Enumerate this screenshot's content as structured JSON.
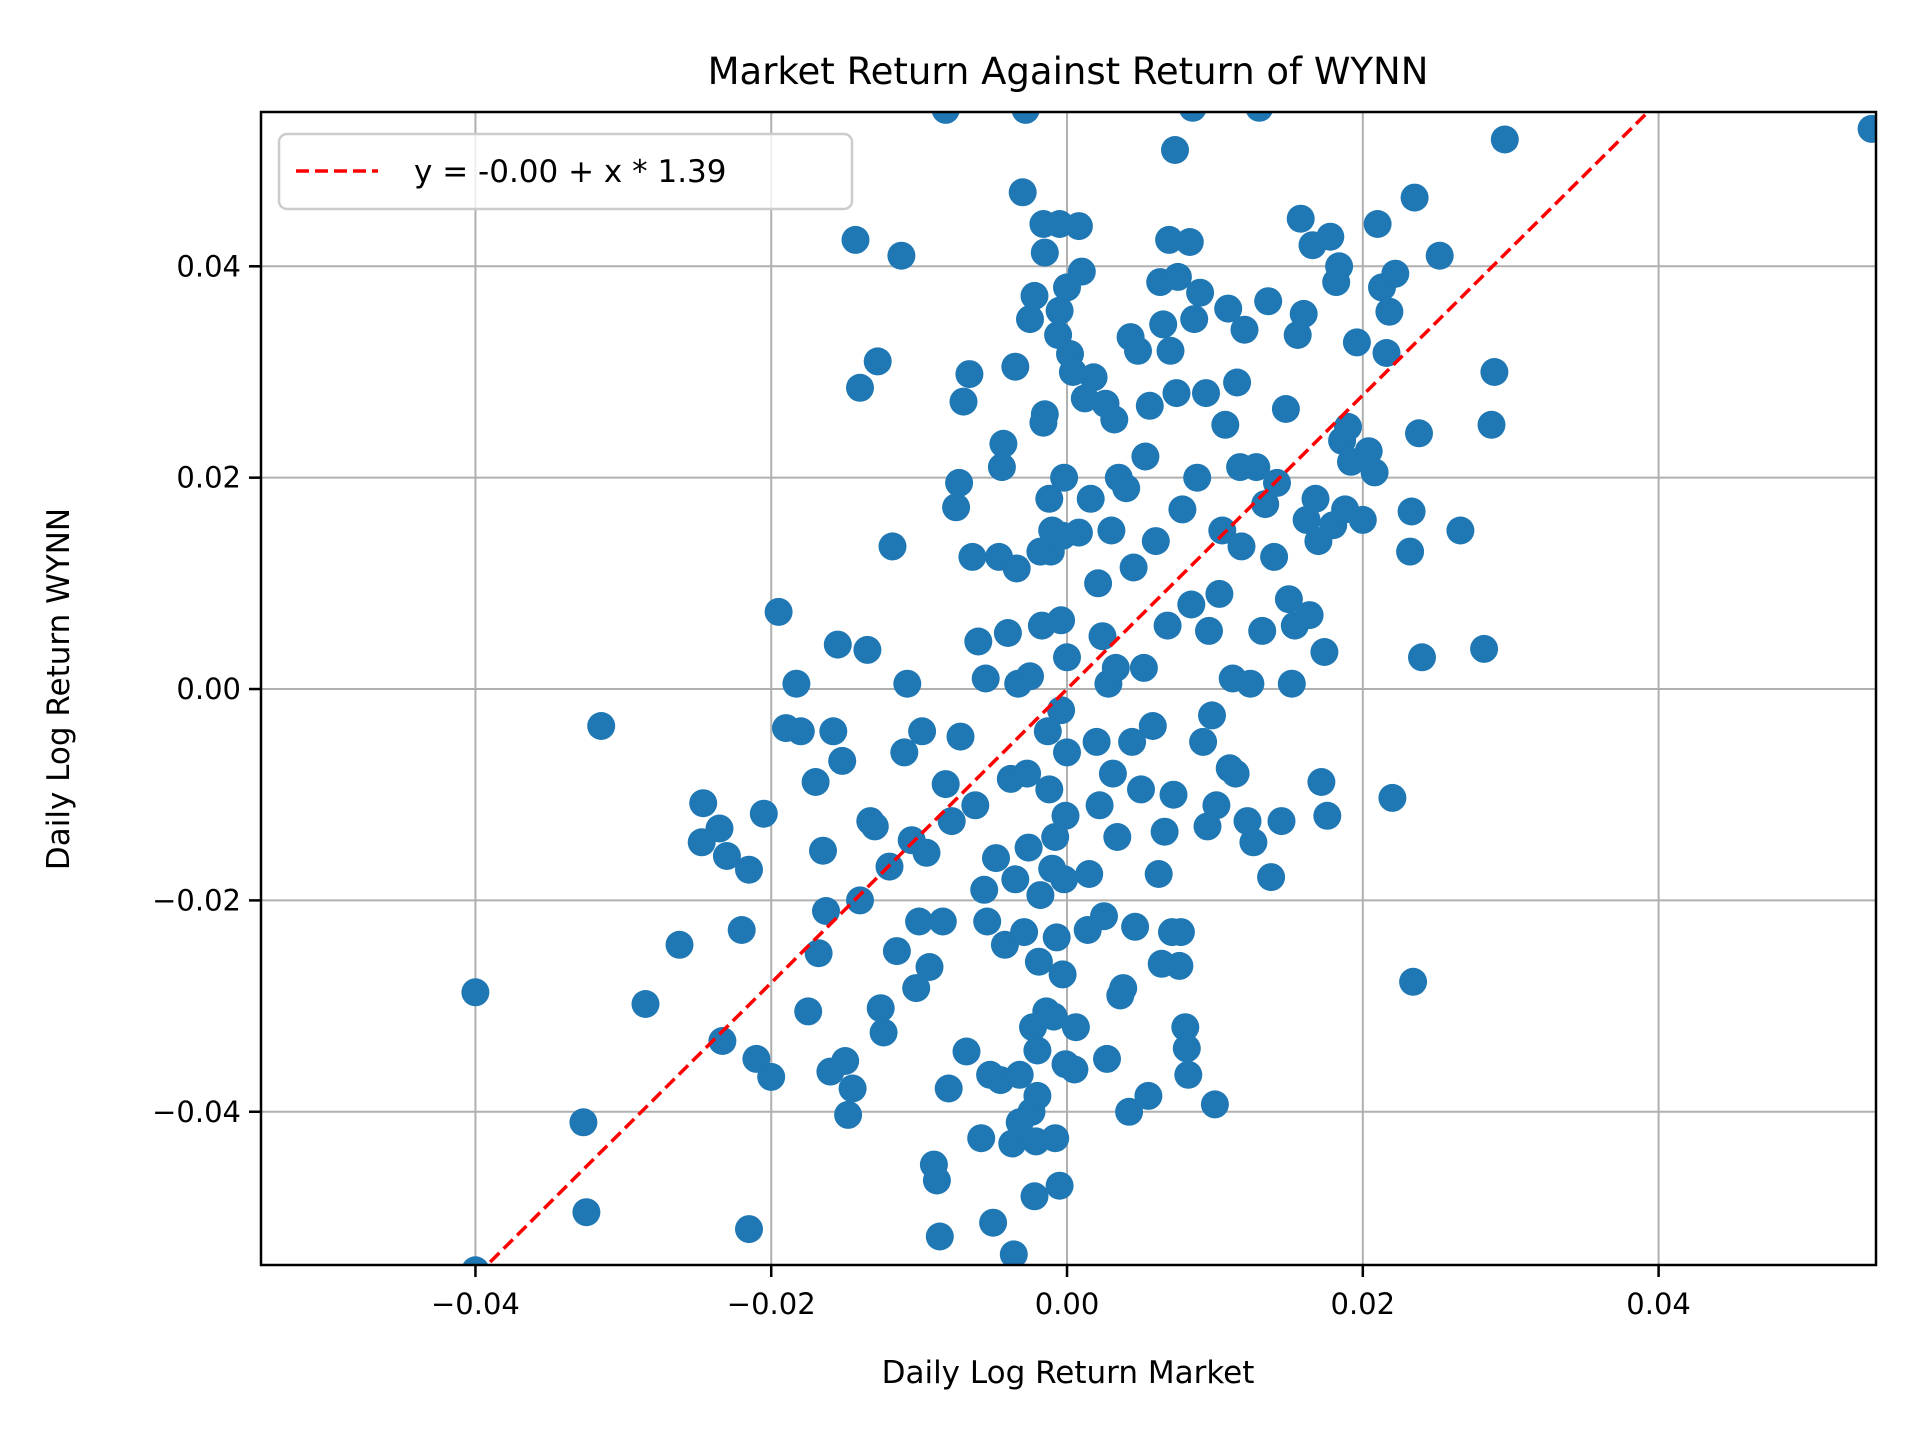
{
  "chart_data": {
    "type": "scatter",
    "title": "Market Return Against Return of WYNN",
    "xlabel": "Daily Log Return Market",
    "ylabel": "Daily Log Return WYNN",
    "xlim": [
      -0.0545,
      0.0547
    ],
    "ylim": [
      -0.0545,
      0.0546
    ],
    "xticks": [
      -0.04,
      -0.02,
      0.0,
      0.02,
      0.04
    ],
    "xtick_labels": [
      "−0.04",
      "−0.02",
      "0.00",
      "0.02",
      "0.04"
    ],
    "yticks": [
      -0.04,
      -0.02,
      0.0,
      0.02,
      0.04
    ],
    "ytick_labels": [
      "−0.04",
      "−0.02",
      "0.00",
      "0.02",
      "0.04"
    ],
    "grid": true,
    "legend_position": "upper left",
    "legend": [
      "y = -0.00 + x * 1.39"
    ],
    "series": [
      {
        "name": "observations",
        "kind": "scatter",
        "color": "#1f77b4",
        "points": [
          [
            -0.04,
            -0.0287
          ],
          [
            -0.0315,
            -0.0035
          ],
          [
            -0.0327,
            -0.041
          ],
          [
            -0.0325,
            -0.0495
          ],
          [
            -0.04,
            -0.055
          ],
          [
            -0.0285,
            -0.0298
          ],
          [
            -0.0262,
            -0.0242
          ],
          [
            -0.0246,
            -0.0108
          ],
          [
            -0.0247,
            -0.0145
          ],
          [
            -0.0235,
            -0.0132
          ],
          [
            -0.023,
            -0.0158
          ],
          [
            -0.0233,
            -0.0333
          ],
          [
            -0.022,
            -0.0228
          ],
          [
            -0.0215,
            -0.0171
          ],
          [
            -0.0215,
            -0.0511
          ],
          [
            -0.021,
            -0.035
          ],
          [
            -0.0205,
            -0.0118
          ],
          [
            -0.02,
            -0.0367
          ],
          [
            -0.0195,
            0.0073
          ],
          [
            -0.019,
            -0.0037
          ],
          [
            -0.0183,
            0.0005
          ],
          [
            -0.018,
            -0.004
          ],
          [
            -0.0175,
            -0.0305
          ],
          [
            -0.017,
            -0.0088
          ],
          [
            -0.0168,
            -0.025
          ],
          [
            -0.0165,
            -0.0153
          ],
          [
            -0.0163,
            -0.021
          ],
          [
            -0.016,
            -0.0362
          ],
          [
            -0.0158,
            -0.004
          ],
          [
            -0.0155,
            0.0042
          ],
          [
            -0.0152,
            -0.0068
          ],
          [
            -0.015,
            -0.0352
          ],
          [
            -0.0148,
            -0.0403
          ],
          [
            -0.0145,
            -0.0378
          ],
          [
            -0.0143,
            0.0425
          ],
          [
            -0.014,
            -0.02
          ],
          [
            -0.014,
            0.0285
          ],
          [
            -0.0135,
            0.0037
          ],
          [
            -0.0133,
            -0.0125
          ],
          [
            -0.013,
            -0.013
          ],
          [
            -0.0128,
            0.031
          ],
          [
            -0.0126,
            -0.0302
          ],
          [
            -0.0124,
            -0.0325
          ],
          [
            -0.012,
            -0.0168
          ],
          [
            -0.0118,
            0.0135
          ],
          [
            -0.0115,
            -0.0248
          ],
          [
            -0.0112,
            0.041
          ],
          [
            -0.011,
            -0.006
          ],
          [
            -0.0108,
            0.0005
          ],
          [
            -0.0105,
            -0.0143
          ],
          [
            -0.0102,
            -0.0283
          ],
          [
            -0.01,
            -0.022
          ],
          [
            -0.0098,
            -0.004
          ],
          [
            -0.0095,
            -0.0155
          ],
          [
            -0.0093,
            -0.0263
          ],
          [
            -0.009,
            -0.045
          ],
          [
            -0.0088,
            -0.0465
          ],
          [
            -0.0086,
            -0.0518
          ],
          [
            -0.0084,
            -0.022
          ],
          [
            -0.0082,
            -0.009
          ],
          [
            -0.008,
            -0.0378
          ],
          [
            -0.0078,
            -0.0125
          ],
          [
            -0.0075,
            0.0172
          ],
          [
            -0.0073,
            0.0195
          ],
          [
            -0.0072,
            -0.0045
          ],
          [
            -0.007,
            0.0272
          ],
          [
            -0.0068,
            -0.0343
          ],
          [
            -0.0066,
            0.0298
          ],
          [
            -0.0064,
            0.0125
          ],
          [
            -0.0062,
            -0.011
          ],
          [
            -0.006,
            0.0045
          ],
          [
            -0.0058,
            -0.0425
          ],
          [
            -0.0056,
            -0.019
          ],
          [
            -0.0055,
            0.001
          ],
          [
            -0.0054,
            -0.022
          ],
          [
            -0.0052,
            -0.0365
          ],
          [
            -0.005,
            -0.0505
          ],
          [
            -0.0048,
            -0.016
          ],
          [
            -0.0046,
            0.0125
          ],
          [
            -0.0045,
            -0.037
          ],
          [
            -0.0044,
            0.021
          ],
          [
            -0.0043,
            0.0232
          ],
          [
            -0.0042,
            -0.0242
          ],
          [
            -0.004,
            0.0053
          ],
          [
            -0.0038,
            -0.0085
          ],
          [
            -0.0037,
            -0.043
          ],
          [
            -0.0036,
            -0.0535
          ],
          [
            -0.0035,
            -0.018
          ],
          [
            -0.0034,
            0.0114
          ],
          [
            -0.0033,
            0.0005
          ],
          [
            -0.0032,
            -0.0365
          ],
          [
            -0.003,
            0.047
          ],
          [
            -0.0029,
            -0.023
          ],
          [
            -0.0028,
            0.0548
          ],
          [
            -0.0027,
            -0.008
          ],
          [
            -0.0026,
            -0.015
          ],
          [
            -0.0025,
            0.0012
          ],
          [
            -0.0024,
            -0.04
          ],
          [
            -0.0023,
            -0.032
          ],
          [
            -0.0022,
            -0.048
          ],
          [
            -0.0021,
            -0.0428
          ],
          [
            -0.002,
            -0.0342
          ],
          [
            -0.0019,
            -0.0258
          ],
          [
            -0.0018,
            -0.0195
          ],
          [
            -0.0017,
            0.006
          ],
          [
            -0.0016,
            0.0252
          ],
          [
            -0.0015,
            0.0413
          ],
          [
            -0.0014,
            -0.0305
          ],
          [
            -0.0013,
            -0.004
          ],
          [
            -0.0012,
            -0.0095
          ],
          [
            -0.0011,
            0.013
          ],
          [
            -0.001,
            -0.017
          ],
          [
            -0.0009,
            -0.031
          ],
          [
            -0.0008,
            -0.0425
          ],
          [
            -0.0007,
            -0.0235
          ],
          [
            -0.0006,
            0.0335
          ],
          [
            -0.0005,
            0.0358
          ],
          [
            -0.0005,
            -0.047
          ],
          [
            -0.0004,
            0.0065
          ],
          [
            -0.0004,
            -0.002
          ],
          [
            -0.0003,
            -0.027
          ],
          [
            -0.0003,
            0.0145
          ],
          [
            -0.0002,
            -0.018
          ],
          [
            -0.0002,
            0.02
          ],
          [
            -0.0001,
            -0.0355
          ],
          [
            -0.0001,
            -0.012
          ],
          [
            0.0,
            0.003
          ],
          [
            0.0,
            -0.006
          ],
          [
            -0.0035,
            0.0305
          ],
          [
            -0.0032,
            -0.041
          ],
          [
            -0.0025,
            0.035
          ],
          [
            -0.0022,
            0.0372
          ],
          [
            -0.002,
            -0.0385
          ],
          [
            -0.0018,
            0.013
          ],
          [
            -0.0015,
            0.026
          ],
          [
            -0.0012,
            0.018
          ],
          [
            -0.001,
            0.015
          ],
          [
            -0.0008,
            -0.014
          ],
          [
            -0.0005,
            0.044
          ],
          [
            0.0,
            0.038
          ],
          [
            0.0002,
            0.0317
          ],
          [
            0.0004,
            0.03
          ],
          [
            0.0005,
            -0.036
          ],
          [
            0.0006,
            -0.032
          ],
          [
            0.0008,
            0.0438
          ],
          [
            0.001,
            0.0395
          ],
          [
            0.0012,
            0.0275
          ],
          [
            0.0014,
            -0.0228
          ],
          [
            0.0015,
            -0.0175
          ],
          [
            0.0016,
            0.018
          ],
          [
            0.0018,
            0.0295
          ],
          [
            0.002,
            -0.005
          ],
          [
            0.0021,
            0.01
          ],
          [
            0.0022,
            -0.011
          ],
          [
            0.0024,
            0.005
          ],
          [
            0.0025,
            -0.0215
          ],
          [
            0.0026,
            0.027
          ],
          [
            0.0027,
            -0.035
          ],
          [
            0.0028,
            0.0005
          ],
          [
            0.003,
            0.015
          ],
          [
            0.0031,
            -0.008
          ],
          [
            0.0032,
            0.0255
          ],
          [
            0.0033,
            0.002
          ],
          [
            0.0034,
            -0.014
          ],
          [
            0.0035,
            0.02
          ],
          [
            0.0036,
            -0.029
          ],
          [
            0.0038,
            -0.0283
          ],
          [
            0.004,
            0.019
          ],
          [
            0.0042,
            -0.04
          ],
          [
            0.0043,
            0.0333
          ],
          [
            0.0044,
            -0.005
          ],
          [
            0.0045,
            0.0115
          ],
          [
            0.0046,
            -0.0225
          ],
          [
            0.0048,
            0.032
          ],
          [
            0.005,
            -0.0095
          ],
          [
            0.0052,
            0.002
          ],
          [
            0.0053,
            0.022
          ],
          [
            0.0055,
            -0.0385
          ],
          [
            0.0056,
            0.0268
          ],
          [
            0.0058,
            -0.0035
          ],
          [
            0.006,
            0.014
          ],
          [
            0.0062,
            -0.0175
          ],
          [
            0.0063,
            0.0385
          ],
          [
            0.0064,
            -0.026
          ],
          [
            0.0065,
            0.0345
          ],
          [
            0.0066,
            -0.0135
          ],
          [
            0.0068,
            0.006
          ],
          [
            0.0069,
            0.0425
          ],
          [
            0.007,
            0.032
          ],
          [
            0.0071,
            -0.023
          ],
          [
            0.0072,
            -0.01
          ],
          [
            0.0073,
            0.051
          ],
          [
            0.0074,
            0.028
          ],
          [
            0.0075,
            0.039
          ],
          [
            0.0076,
            -0.0262
          ],
          [
            0.0077,
            -0.023
          ],
          [
            0.0078,
            0.017
          ],
          [
            0.008,
            -0.032
          ],
          [
            0.0081,
            -0.034
          ],
          [
            0.0082,
            -0.0365
          ],
          [
            0.0083,
            0.0423
          ],
          [
            0.0084,
            0.008
          ],
          [
            0.0085,
            0.055
          ],
          [
            0.0086,
            0.035
          ],
          [
            0.0088,
            0.02
          ],
          [
            0.009,
            0.0375
          ],
          [
            0.0092,
            -0.005
          ],
          [
            0.0094,
            0.028
          ],
          [
            0.0095,
            -0.013
          ],
          [
            0.0096,
            0.0055
          ],
          [
            0.0098,
            -0.0025
          ],
          [
            0.01,
            -0.0393
          ],
          [
            0.0101,
            -0.011
          ],
          [
            0.0103,
            0.009
          ],
          [
            0.0105,
            0.015
          ],
          [
            0.0107,
            0.025
          ],
          [
            0.0109,
            0.036
          ],
          [
            0.011,
            -0.0075
          ],
          [
            0.0112,
            0.001
          ],
          [
            0.0114,
            -0.008
          ],
          [
            0.0115,
            0.029
          ],
          [
            0.0117,
            0.021
          ],
          [
            0.0118,
            0.0135
          ],
          [
            0.012,
            0.034
          ],
          [
            0.0122,
            -0.0125
          ],
          [
            0.0124,
            0.0005
          ],
          [
            0.0126,
            -0.0145
          ],
          [
            0.0128,
            0.021
          ],
          [
            0.013,
            0.055
          ],
          [
            0.0132,
            0.0055
          ],
          [
            0.0134,
            0.0175
          ],
          [
            0.0136,
            0.0367
          ],
          [
            0.0138,
            -0.0178
          ],
          [
            0.014,
            0.0125
          ],
          [
            0.0142,
            0.0195
          ],
          [
            0.0145,
            -0.0125
          ],
          [
            0.0148,
            0.0265
          ],
          [
            0.015,
            0.0085
          ],
          [
            0.0152,
            0.0005
          ],
          [
            0.0154,
            0.006
          ],
          [
            0.0156,
            0.0335
          ],
          [
            0.0158,
            0.0445
          ],
          [
            0.016,
            0.0355
          ],
          [
            0.0162,
            0.016
          ],
          [
            0.0164,
            0.007
          ],
          [
            0.0166,
            0.042
          ],
          [
            0.0168,
            0.018
          ],
          [
            0.017,
            0.014
          ],
          [
            0.0172,
            -0.0088
          ],
          [
            0.0174,
            0.0035
          ],
          [
            0.0176,
            -0.012
          ],
          [
            0.0178,
            0.0428
          ],
          [
            0.018,
            0.0155
          ],
          [
            0.0182,
            0.0385
          ],
          [
            0.0184,
            0.04
          ],
          [
            0.0186,
            0.0235
          ],
          [
            0.0188,
            0.017
          ],
          [
            0.019,
            0.0248
          ],
          [
            0.0192,
            0.0215
          ],
          [
            0.0196,
            0.0328
          ],
          [
            0.02,
            0.016
          ],
          [
            0.0204,
            0.0225
          ],
          [
            0.0208,
            0.0205
          ],
          [
            0.021,
            0.044
          ],
          [
            0.0213,
            0.038
          ],
          [
            0.0216,
            0.0318
          ],
          [
            0.0218,
            0.0357
          ],
          [
            0.022,
            -0.0103
          ],
          [
            0.0222,
            0.0393
          ],
          [
            0.0232,
            0.013
          ],
          [
            0.0233,
            0.0168
          ],
          [
            0.0234,
            -0.0277
          ],
          [
            0.0235,
            0.0465
          ],
          [
            0.0238,
            0.0242
          ],
          [
            0.024,
            0.003
          ],
          [
            0.0252,
            0.041
          ],
          [
            0.0266,
            0.015
          ],
          [
            0.0282,
            0.0038
          ],
          [
            0.0287,
            0.025
          ],
          [
            0.0289,
            0.03
          ],
          [
            0.0296,
            0.052
          ],
          [
            0.0544,
            0.053
          ],
          [
            -0.0082,
            0.0548
          ],
          [
            -0.0016,
            0.044
          ],
          [
            0.0008,
            0.0148
          ]
        ]
      },
      {
        "name": "y = -0.00 + x * 1.39",
        "kind": "line",
        "color": "#ff0000",
        "linestyle": "dashed",
        "intercept": -0.0,
        "slope": 1.39
      }
    ]
  },
  "title": "Market Return Against Return of WYNN",
  "xlabel": "Daily Log Return Market",
  "ylabel": "Daily Log Return WYNN",
  "legend": {
    "entries": [
      {
        "label": "y = -0.00 + x * 1.39",
        "color": "#ff0000",
        "style": "dashed"
      }
    ]
  },
  "colors": {
    "marker": "#1f77b4",
    "fit_line": "#ff0000",
    "grid": "#b0b0b0",
    "axes": "#000000",
    "legend_border": "#cccccc"
  }
}
